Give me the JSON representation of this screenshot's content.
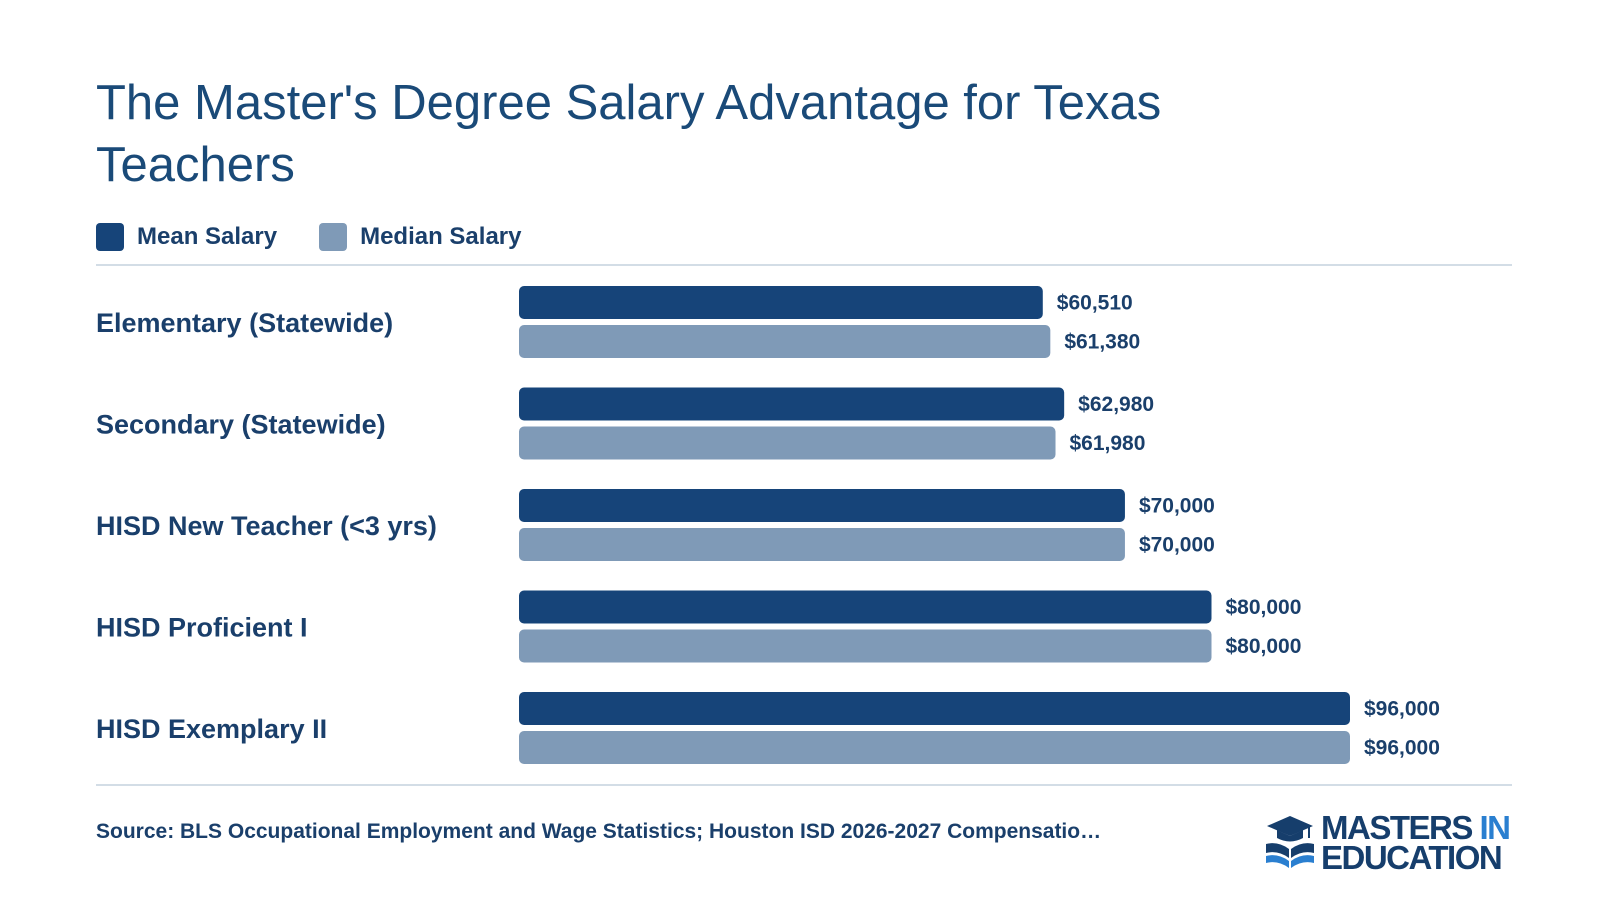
{
  "title": "The Master's Degree Salary Advantage for Texas Teachers",
  "colors": {
    "mean": "#164479",
    "median": "#7f9ab7",
    "text": "#1a3f6b",
    "rule": "#d3dde6",
    "logo_accent": "#2a7fd0"
  },
  "chart_data": {
    "type": "bar",
    "orientation": "horizontal",
    "title": "The Master's Degree Salary Advantage for Texas Teachers",
    "categories": [
      "Elementary (Statewide)",
      "Secondary (Statewide)",
      "HISD New Teacher (<3 yrs)",
      "HISD Proficient I",
      "HISD Exemplary II"
    ],
    "series": [
      {
        "name": "Mean Salary",
        "color": "#164479",
        "values": [
          60510,
          62980,
          70000,
          80000,
          96000
        ],
        "labels": [
          "$60,510",
          "$62,980",
          "$70,000",
          "$80,000",
          "$96,000"
        ]
      },
      {
        "name": "Median Salary",
        "color": "#7f9ab7",
        "values": [
          61380,
          61980,
          70000,
          80000,
          96000
        ],
        "labels": [
          "$61,380",
          "$61,980",
          "$70,000",
          "$80,000",
          "$96,000"
        ]
      }
    ],
    "xlim": [
      0,
      96000
    ],
    "grid": false,
    "legend": "top-left"
  },
  "source": "Source: BLS Occupational Employment and Wage Statistics; Houston ISD 2026-2027 Compensatio…",
  "logo": {
    "line1_a": "MASTERS",
    "line1_b": "IN",
    "line2": "EDUCATION",
    "icon": "graduation-cap-book-icon"
  }
}
